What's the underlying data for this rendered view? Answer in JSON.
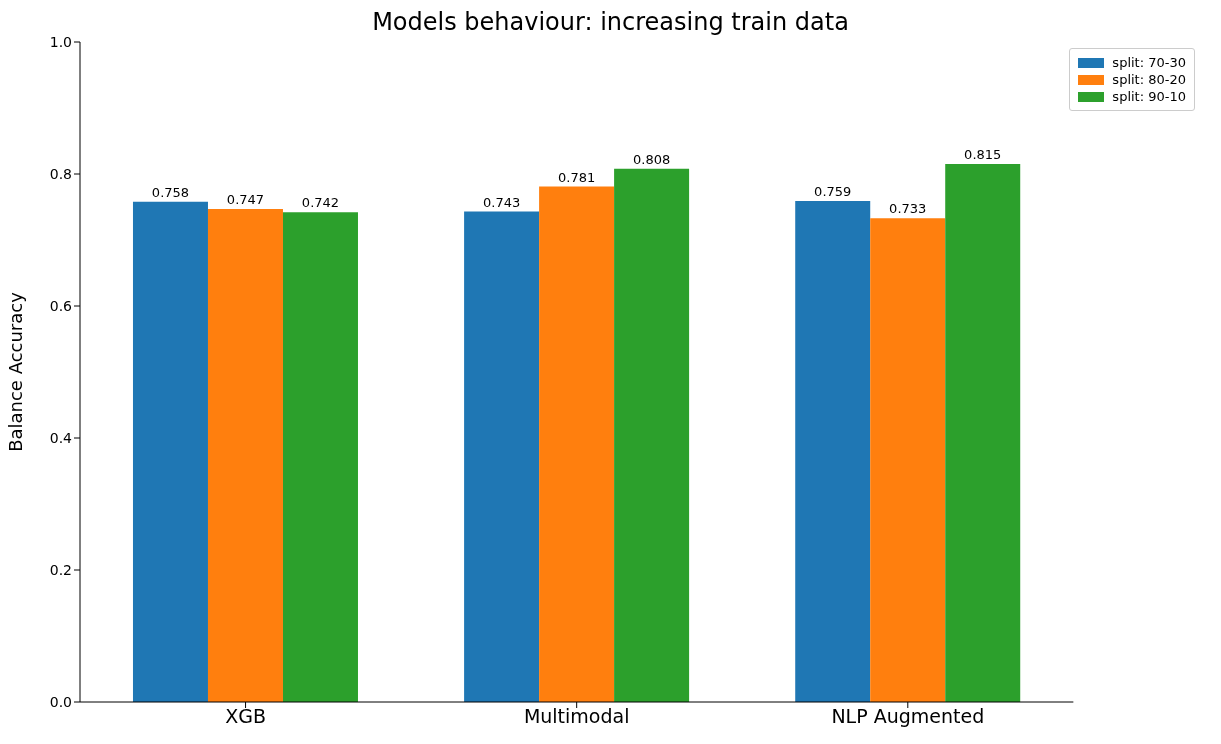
{
  "chart_data": {
    "type": "bar",
    "title": "Models behaviour: increasing train data",
    "ylabel": "Balance Accuracy",
    "categories": [
      "XGB",
      "Multimodal",
      "NLP Augmented"
    ],
    "series": [
      {
        "name": "split: 70-30",
        "color": "#1f77b4",
        "values": [
          0.758,
          0.743,
          0.759
        ]
      },
      {
        "name": "split: 80-20",
        "color": "#ff7f0e",
        "values": [
          0.747,
          0.781,
          0.733
        ]
      },
      {
        "name": "split: 90-10",
        "color": "#2ca02c",
        "values": [
          0.742,
          0.808,
          0.815
        ]
      }
    ],
    "ylim": [
      0,
      1
    ],
    "yticks": [
      {
        "value": 0,
        "label": "0.0"
      },
      {
        "value": 0.2,
        "label": "0.2"
      },
      {
        "value": 0.4,
        "label": "0.4"
      },
      {
        "value": 0.6,
        "label": "0.6"
      },
      {
        "value": 0.8,
        "label": "0.8"
      },
      {
        "value": 1,
        "label": "1.0"
      }
    ],
    "data_labels": true,
    "legend": "top right",
    "grid": false
  }
}
